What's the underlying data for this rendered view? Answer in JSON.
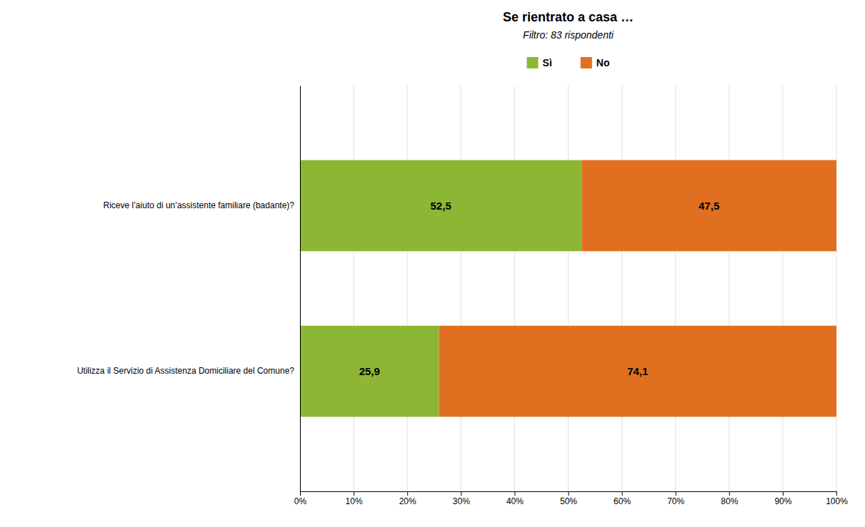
{
  "chart_data": {
    "type": "bar",
    "orientation": "horizontal",
    "stacked": true,
    "title": "Se rientrato a casa …",
    "subtitle": "Filtro: 83 rispondenti",
    "categories": [
      "Riceve l’aiuto di un’assistente familiare (badante)?",
      "Utilizza il Servizio di Assistenza Domiciliare del Comune?"
    ],
    "series": [
      {
        "name": "Sì",
        "color": "#8DB635",
        "values": [
          52.5,
          25.9
        ],
        "value_labels": [
          "52,5",
          "25,9"
        ]
      },
      {
        "name": "No",
        "color": "#E07020",
        "values": [
          47.5,
          74.1
        ],
        "value_labels": [
          "47,5",
          "74,1"
        ]
      }
    ],
    "xlim": [
      0,
      100
    ],
    "xticks": [
      {
        "value": 0,
        "label": "0%"
      },
      {
        "value": 10,
        "label": "10%"
      },
      {
        "value": 20,
        "label": "20%"
      },
      {
        "value": 30,
        "label": "30%"
      },
      {
        "value": 40,
        "label": "40%"
      },
      {
        "value": 50,
        "label": "50%"
      },
      {
        "value": 60,
        "label": "60%"
      },
      {
        "value": 70,
        "label": "70%"
      },
      {
        "value": 80,
        "label": "80%"
      },
      {
        "value": 90,
        "label": "90%"
      },
      {
        "value": 100,
        "label": "100%"
      }
    ],
    "grid": true,
    "data_labels": true,
    "legend": "top"
  }
}
